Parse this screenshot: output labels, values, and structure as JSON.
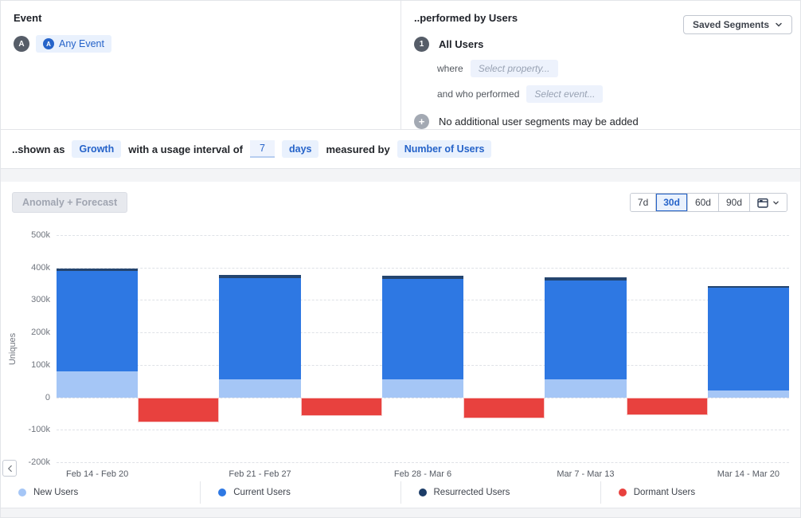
{
  "panels": {
    "event": {
      "title": "Event",
      "avatar_letter": "A",
      "any_event_icon_letter": "A",
      "chip_label": "Any Event"
    },
    "performed_by": {
      "title": "..performed by Users",
      "saved_segments_button": "Saved Segments",
      "segment_index": "1",
      "segment_name": "All Users",
      "where_label": "where",
      "property_placeholder": "Select property...",
      "performed_label": "and who performed",
      "event_placeholder": "Select event...",
      "no_additional_text": "No additional user segments may be added",
      "add_icon_glyph": "+"
    },
    "shown_as": {
      "prefix": "..shown as",
      "metric_chip": "Growth",
      "interval_label": "with a usage interval of",
      "interval_value": "7",
      "interval_unit_chip": "days",
      "measured_by_label": "measured by",
      "measure_chip": "Number of Users"
    }
  },
  "chart_header": {
    "anomaly_button": "Anomaly + Forecast",
    "ranges": [
      "7d",
      "30d",
      "60d",
      "90d"
    ],
    "selected_range": "30d",
    "calendar_icon": "calendar",
    "calendar_chevron_icon": "chevron-down"
  },
  "chart_data": {
    "type": "bar",
    "stacked": true,
    "grid": "horizontal-dashed",
    "legend_position": "bottom",
    "ylabel": "Uniques",
    "ylim": [
      -200000,
      500000
    ],
    "ytick_step": 100000,
    "ytick_labels": [
      "500k",
      "400k",
      "300k",
      "200k",
      "100k",
      "0",
      "-100k",
      "-200k"
    ],
    "categories": [
      "Feb 14 - Feb 20",
      "Feb 21 - Feb 27",
      "Feb 28 - Mar 6",
      "Mar 7 - Mar 13",
      "Mar 14 - Mar 20"
    ],
    "series": [
      {
        "name": "New Users",
        "color": "#a5c6f6",
        "values": [
          80000,
          55000,
          55000,
          55000,
          22000
        ]
      },
      {
        "name": "Current Users",
        "color": "#2e78e3",
        "values": [
          310000,
          312000,
          311000,
          306000,
          315000
        ]
      },
      {
        "name": "Resurrected Users",
        "color": "#24456f",
        "values": [
          8000,
          9000,
          8000,
          8000,
          6000
        ]
      },
      {
        "name": "Dormant Users",
        "color": "#e8413e",
        "values": [
          -76000,
          -57000,
          -66000,
          -56000,
          null
        ],
        "offset_between_periods": true
      }
    ],
    "legend_dot_colors": [
      "#a5c6f6",
      "#2e78e3",
      "#1d3d68",
      "#e8413e"
    ]
  },
  "scroll_left_icon": "chevron-left"
}
